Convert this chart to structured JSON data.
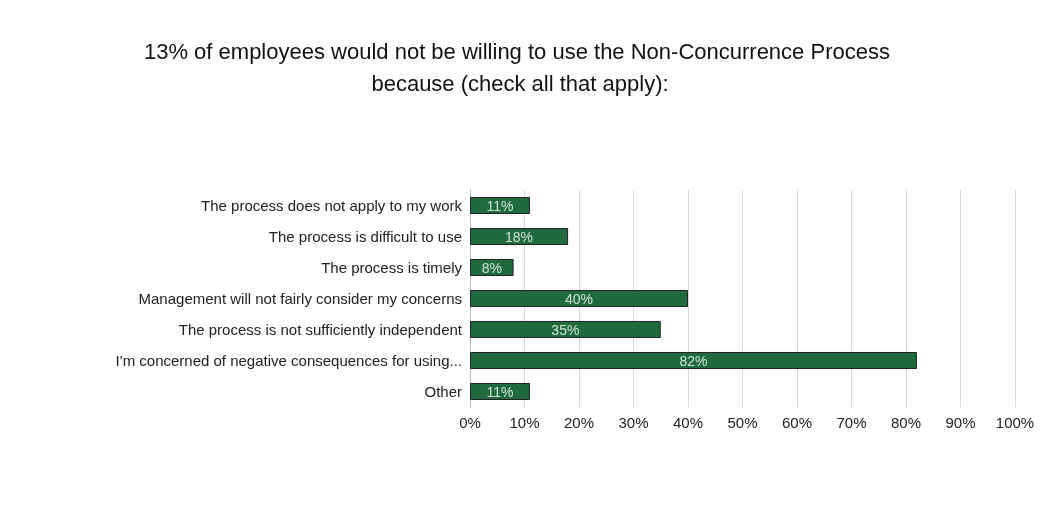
{
  "chart_data": {
    "type": "bar",
    "orientation": "horizontal",
    "title": "13% of employees would not be willing to use the Non-Concurrence Process because (check all that apply):",
    "categories": [
      "The process does not apply to my work",
      "The process is difficult to use",
      "The process is timely",
      "Management will not fairly consider my concerns",
      "The process is not sufficiently independent",
      "I'm concerned of negative consequences for using...",
      "Other"
    ],
    "values": [
      11,
      18,
      8,
      40,
      35,
      82,
      11
    ],
    "value_labels": [
      "11%",
      "18%",
      "8%",
      "40%",
      "35%",
      "82%",
      "11%"
    ],
    "color": "#1f6b3d",
    "xlim": [
      0,
      100
    ],
    "xticks": [
      {
        "value": 0,
        "label": "0%"
      },
      {
        "value": 10,
        "label": "10%"
      },
      {
        "value": 20,
        "label": "20%"
      },
      {
        "value": 30,
        "label": "30%"
      },
      {
        "value": 40,
        "label": "40%"
      },
      {
        "value": 50,
        "label": "50%"
      },
      {
        "value": 60,
        "label": "60%"
      },
      {
        "value": 70,
        "label": "70%"
      },
      {
        "value": 80,
        "label": "80%"
      },
      {
        "value": 90,
        "label": "90%"
      },
      {
        "value": 100,
        "label": "100%"
      }
    ],
    "grid": "x"
  }
}
